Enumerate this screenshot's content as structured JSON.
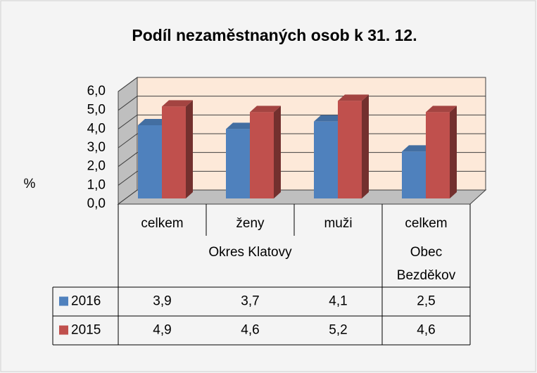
{
  "chart_data": {
    "type": "bar3d",
    "title": "Podíl nezaměstnaných osob k 31. 12.",
    "y_label": "%",
    "groups": [
      {
        "name": "Okres Klatovy",
        "categories": [
          "celkem",
          "ženy",
          "muži"
        ]
      },
      {
        "name": "Obec Bezděkov",
        "categories": [
          "celkem"
        ]
      }
    ],
    "series": [
      {
        "name": "2016",
        "color": "#4f81bd",
        "values": [
          3.9,
          3.7,
          4.1,
          2.5
        ],
        "value_labels": [
          "3,9",
          "3,7",
          "4,1",
          "2,5"
        ]
      },
      {
        "name": "2015",
        "color": "#c0504d",
        "values": [
          4.9,
          4.6,
          5.2,
          4.6
        ],
        "value_labels": [
          "4,9",
          "4,6",
          "5,2",
          "4,6"
        ]
      }
    ],
    "ylim": [
      0,
      6
    ],
    "yticks": [
      {
        "value": 0,
        "label": "0,0"
      },
      {
        "value": 1,
        "label": "1,0"
      },
      {
        "value": 2,
        "label": "2,0"
      },
      {
        "value": 3,
        "label": "3,0"
      },
      {
        "value": 4,
        "label": "4,0"
      },
      {
        "value": 5,
        "label": "5,0"
      },
      {
        "value": 6,
        "label": "6,0"
      }
    ],
    "grid": true
  }
}
